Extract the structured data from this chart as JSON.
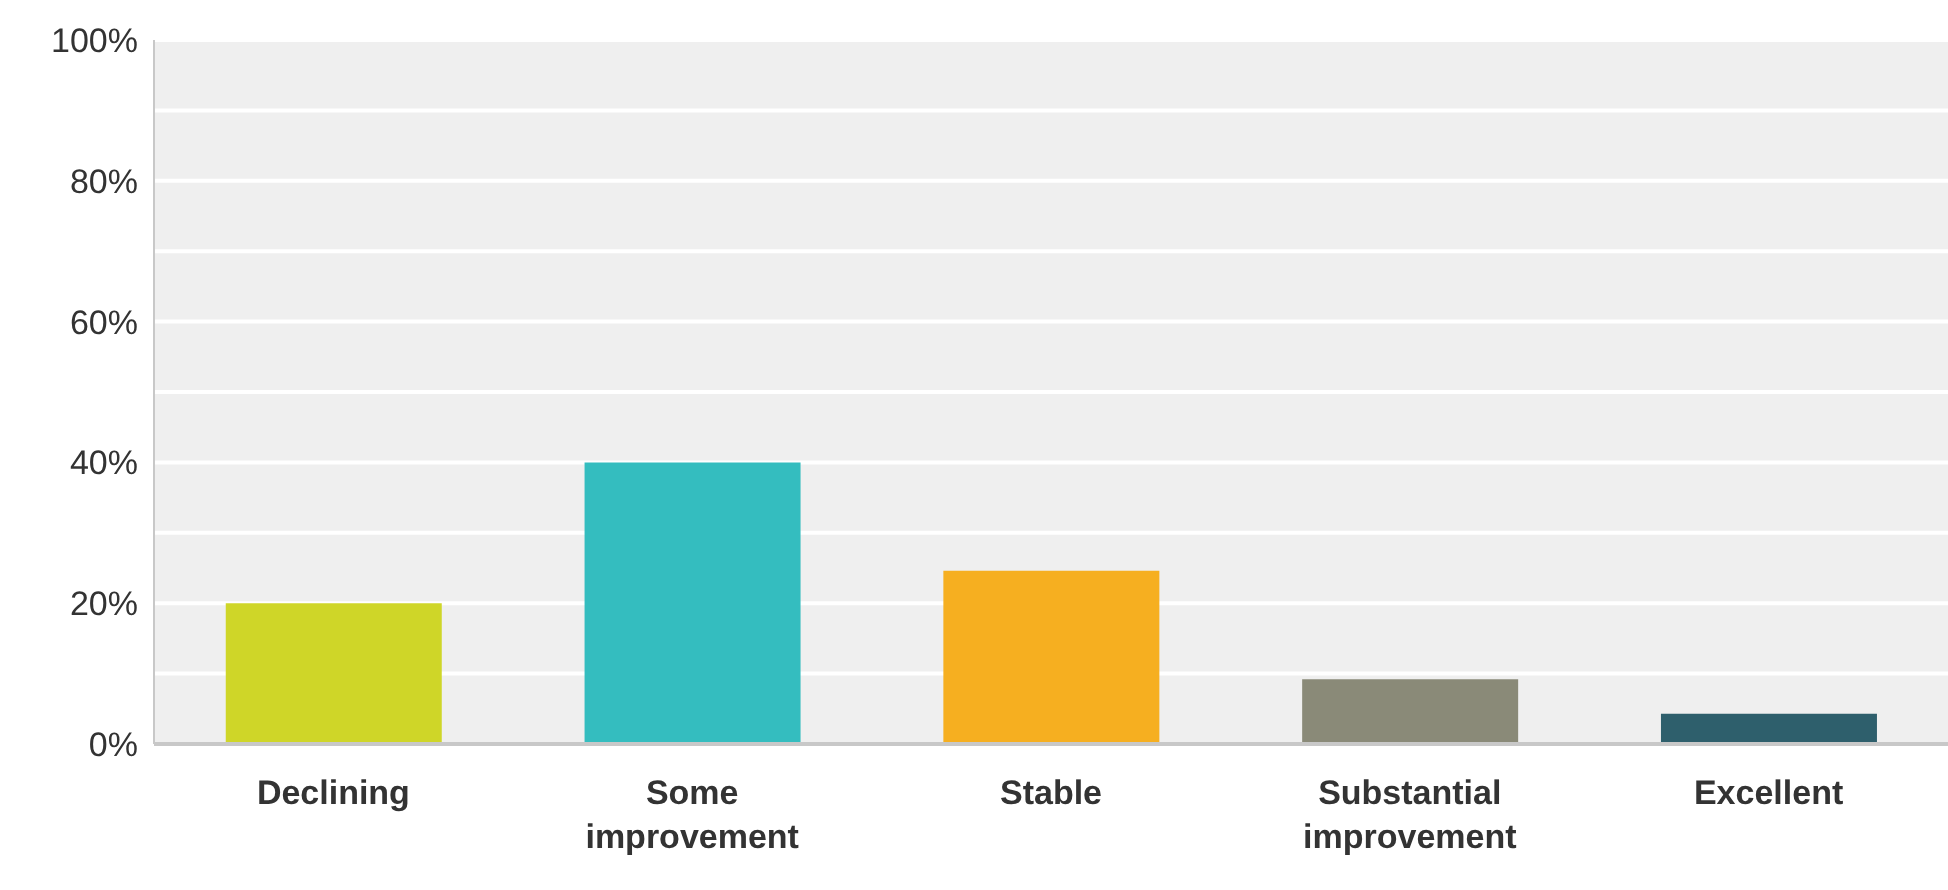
{
  "chart_data": {
    "type": "bar",
    "categories": [
      "Declining",
      "Some improvement",
      "Stable",
      "Substantial improvement",
      "Excellent"
    ],
    "values": [
      20,
      40,
      24.6,
      9.2,
      4.3
    ],
    "colors": [
      "#cfd628",
      "#34bdbf",
      "#f6af20",
      "#8a8a78",
      "#2e5f6c"
    ],
    "ylim": [
      0,
      100
    ],
    "yticks": [
      {
        "value": 0,
        "label": "0%"
      },
      {
        "value": 10,
        "label": null
      },
      {
        "value": 20,
        "label": "20%"
      },
      {
        "value": 30,
        "label": null
      },
      {
        "value": 40,
        "label": "40%"
      },
      {
        "value": 50,
        "label": null
      },
      {
        "value": 60,
        "label": "60%"
      },
      {
        "value": 70,
        "label": null
      },
      {
        "value": 80,
        "label": "80%"
      },
      {
        "value": 90,
        "label": null
      },
      {
        "value": 100,
        "label": "100%"
      }
    ],
    "grid": "y"
  }
}
